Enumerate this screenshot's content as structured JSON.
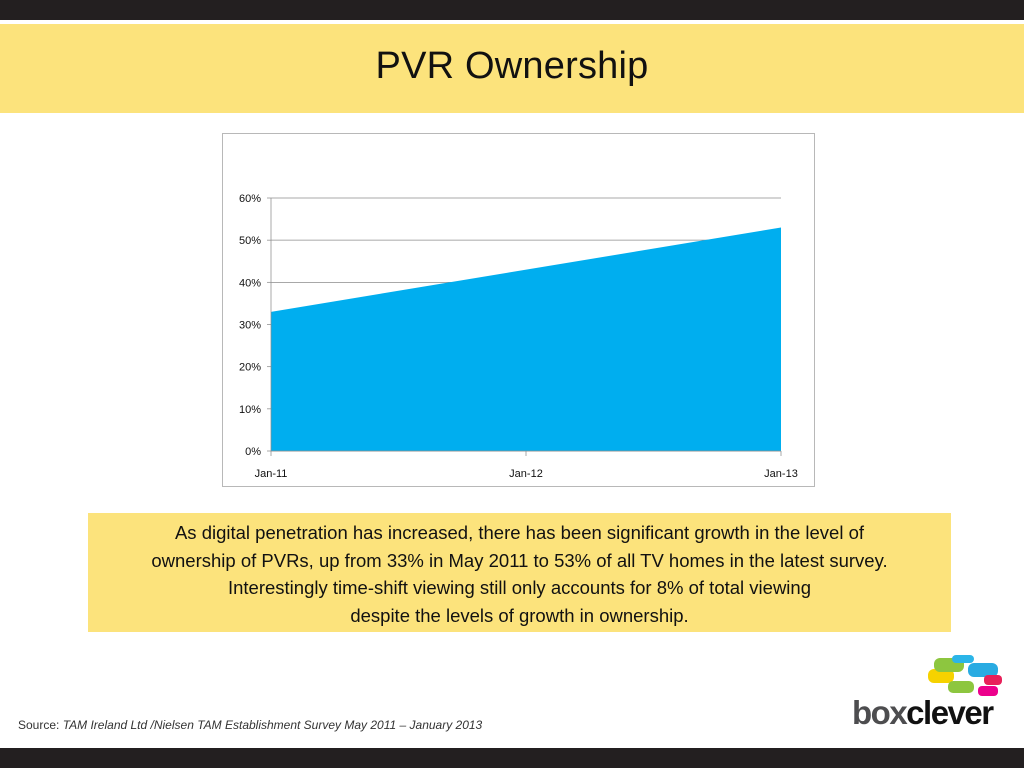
{
  "slide": {
    "title": "PVR Ownership"
  },
  "summary": {
    "lines": [
      "As digital penetration has increased, there has been significant growth in the level of",
      "ownership of PVRs, up from 33% in May 2011 to 53% of all TV homes in the latest survey.",
      "Interestingly time-shift viewing still only accounts for 8% of total viewing",
      "despite the levels of growth in ownership."
    ]
  },
  "source": {
    "label": "Source:",
    "text": "TAM Ireland Ltd /Nielsen TAM Establishment Survey May 2011 – January 2013"
  },
  "logo": {
    "part1": "box",
    "part2": "clever"
  },
  "colors": {
    "band": "#fce37c",
    "bar": "#231f20",
    "area_fill": "#00aeef"
  },
  "chart_data": {
    "type": "area",
    "title": "",
    "xlabel": "",
    "ylabel": "",
    "x": [
      "Jan-11",
      "Jan-13"
    ],
    "values": [
      0.33,
      0.53
    ],
    "x_ticks": [
      "Jan-11",
      "Jan-12",
      "Jan-13"
    ],
    "y_ticks": [
      "0%",
      "10%",
      "20%",
      "30%",
      "40%",
      "50%",
      "60%"
    ],
    "ylim": [
      0,
      0.6
    ],
    "grid": true,
    "legend": "none",
    "color": "#00aeef"
  }
}
